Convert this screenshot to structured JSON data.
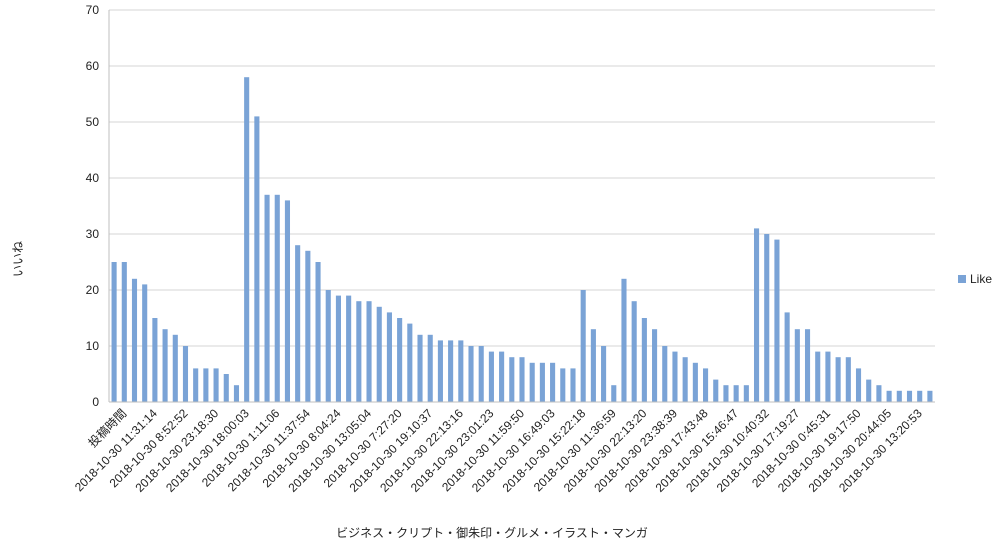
{
  "chart_data": {
    "type": "bar",
    "title": "",
    "xlabel": "ビジネス・クリプト・御朱印・グルメ・イラスト・マンガ",
    "ylabel": "いいね",
    "ylim": [
      0,
      70
    ],
    "yticks": [
      0,
      10,
      20,
      30,
      40,
      50,
      60,
      70
    ],
    "grid": true,
    "legend_position": "right",
    "bar_color": "#7aa3d6",
    "x_tick_labels": [
      "投稿時間",
      "2018-10-30 11:31:14",
      "2018-10-30 8:52:52",
      "2018-10-30 23:18:30",
      "2018-10-30 18:00:03",
      "2018-10-30 1:11:06",
      "2018-10-30 11:37:54",
      "2018-10-30 8:04:24",
      "2018-10-30 13:05:04",
      "2018-10-30 7:27:20",
      "2018-10-30 19:10:37",
      "2018-10-30 22:13:16",
      "2018-10-30 23:01:23",
      "2018-10-30 11:59:50",
      "2018-10-30 16:49:03",
      "2018-10-30 15:22:18",
      "2018-10-30 11:36:59",
      "2018-10-30 22:13:20",
      "2018-10-30 23:38:39",
      "2018-10-30 17:43:48",
      "2018-10-30 15:46:47",
      "2018-10-30 10:40:32",
      "2018-10-30 17:19:27",
      "2018-10-30 0:45:31",
      "2018-10-30 19:17:50",
      "2018-10-30 20:44:05",
      "2018-10-30 13:20:53"
    ],
    "series": [
      {
        "name": "Like",
        "values": [
          25,
          25,
          22,
          21,
          15,
          13,
          12,
          10,
          6,
          6,
          6,
          5,
          3,
          58,
          51,
          37,
          37,
          36,
          28,
          27,
          25,
          20,
          19,
          19,
          18,
          18,
          17,
          16,
          15,
          14,
          12,
          12,
          11,
          11,
          11,
          10,
          10,
          9,
          9,
          8,
          8,
          7,
          7,
          7,
          6,
          6,
          20,
          13,
          10,
          3,
          22,
          18,
          15,
          13,
          10,
          9,
          8,
          7,
          6,
          4,
          3,
          3,
          3,
          31,
          30,
          29,
          16,
          13,
          13,
          9,
          9,
          8,
          8,
          6,
          4,
          3,
          2,
          2,
          2,
          2,
          2
        ]
      }
    ]
  }
}
